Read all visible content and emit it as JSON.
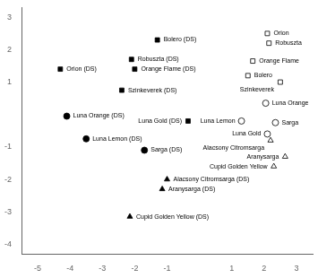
{
  "chart_data": {
    "type": "scatter",
    "xlim": [
      -5.5,
      3.5
    ],
    "ylim": [
      -4.3,
      3.3
    ],
    "xticks": [
      -5,
      -4,
      -3,
      -2,
      -1,
      1,
      2,
      3
    ],
    "yticks": [
      -4,
      -3,
      -2,
      -1,
      1,
      2,
      3
    ],
    "grid": false,
    "series": [
      {
        "color": "black",
        "marker": "square",
        "x": [
          -1.3,
          -2.1,
          -2.0,
          -4.3,
          -2.4,
          -0.35
        ],
        "values": [
          2.3,
          1.7,
          1.4,
          1.4,
          0.75,
          -0.2
        ],
        "labels": [
          "Bolero (DS)",
          "Robuszta (DS)",
          "Orange Flame (DS)",
          "Orion (DS)",
          "Szinkeverek (DS)",
          "Luna Gold (DS)"
        ]
      },
      {
        "color": "black",
        "marker": "circle",
        "x": [
          -4.1,
          -3.5,
          -1.7
        ],
        "values": [
          -0.05,
          -0.75,
          -1.1
        ],
        "labels": [
          "Luna Orange (DS)",
          "Luna Lemon (DS)",
          "Sarga (DS)"
        ]
      },
      {
        "color": "black",
        "marker": "triangle",
        "x": [
          -1.0,
          -1.15,
          -2.15
        ],
        "values": [
          -2.0,
          -2.3,
          -3.15
        ],
        "labels": [
          "Alacsony Citromsarga (DS)",
          "Aranysarga (DS)",
          "Cupid Golden Yellow (DS)"
        ]
      },
      {
        "color": "white",
        "marker": "square",
        "x": [
          2.1,
          2.15,
          1.65,
          1.5,
          2.5
        ],
        "values": [
          2.5,
          2.2,
          1.65,
          1.2,
          1.0
        ],
        "labels": [
          "Orion",
          "Robuszta",
          "Orange Flame",
          "Bolero",
          "Szinkeverek"
        ]
      },
      {
        "color": "white",
        "marker": "circle",
        "x": [
          2.05,
          1.3,
          2.35,
          2.1
        ],
        "values": [
          0.35,
          -0.2,
          -0.25,
          -0.6
        ],
        "labels": [
          "Luna Orange",
          "Luna Lemon",
          "Sarga",
          "Luna Gold"
        ]
      },
      {
        "color": "white",
        "marker": "triangle",
        "x": [
          2.2,
          2.65,
          2.3
        ],
        "values": [
          -0.8,
          -1.3,
          -1.6
        ],
        "labels": [
          "Alacsony Citromsarga",
          "Aranysarga",
          "Cupid Golden Yellow"
        ]
      }
    ]
  }
}
